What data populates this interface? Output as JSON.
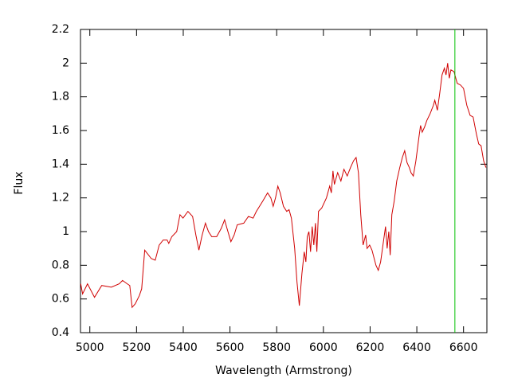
{
  "chart_data": {
    "type": "line",
    "xlabel": "Wavelength (Armstrong)",
    "ylabel": "Flux",
    "xlim": [
      4960,
      6700
    ],
    "ylim": [
      0.4,
      2.2
    ],
    "xticks": [
      5000,
      5200,
      5400,
      5600,
      5800,
      6000,
      6200,
      6400,
      6600
    ],
    "yticks": [
      0.4,
      0.6,
      0.8,
      1,
      1.2,
      1.4,
      1.6,
      1.8,
      2,
      2.2
    ],
    "grid": false,
    "vline": {
      "x": 6563,
      "color": "#00c000"
    },
    "x": [
      4961,
      4969,
      4990,
      5020,
      5051,
      5092,
      5126,
      5140,
      5160,
      5171,
      5181,
      5194,
      5212,
      5222,
      5235,
      5263,
      5280,
      5297,
      5314,
      5331,
      5338,
      5351,
      5372,
      5386,
      5399,
      5420,
      5440,
      5454,
      5467,
      5481,
      5495,
      5508,
      5522,
      5543,
      5563,
      5577,
      5587,
      5604,
      5618,
      5631,
      5659,
      5679,
      5699,
      5713,
      5740,
      5761,
      5775,
      5785,
      5795,
      5805,
      5815,
      5829,
      5843,
      5853,
      5863,
      5877,
      5887,
      5897,
      5908,
      5918,
      5925,
      5931,
      5938,
      5945,
      5952,
      5959,
      5966,
      5972,
      5979,
      5993,
      6013,
      6027,
      6034,
      6041,
      6047,
      6061,
      6075,
      6088,
      6102,
      6116,
      6129,
      6140,
      6150,
      6160,
      6170,
      6181,
      6187,
      6198,
      6208,
      6225,
      6235,
      6245,
      6256,
      6266,
      6273,
      6280,
      6286,
      6293,
      6303,
      6314,
      6327,
      6338,
      6348,
      6358,
      6368,
      6375,
      6385,
      6396,
      6409,
      6416,
      6423,
      6433,
      6443,
      6457,
      6471,
      6477,
      6488,
      6498,
      6508,
      6518,
      6525,
      6532,
      6539,
      6546,
      6559,
      6573,
      6587,
      6600,
      6614,
      6628,
      6641,
      6655,
      6665,
      6675,
      6686,
      6696
    ],
    "series": [
      {
        "name": "Flux",
        "color": "#d00000",
        "values": [
          0.69,
          0.63,
          0.69,
          0.61,
          0.68,
          0.67,
          0.69,
          0.71,
          0.69,
          0.68,
          0.55,
          0.57,
          0.62,
          0.66,
          0.89,
          0.84,
          0.83,
          0.92,
          0.95,
          0.95,
          0.93,
          0.97,
          1.0,
          1.1,
          1.08,
          1.12,
          1.09,
          0.98,
          0.89,
          0.98,
          1.05,
          1.0,
          0.97,
          0.97,
          1.02,
          1.07,
          1.02,
          0.94,
          0.98,
          1.04,
          1.05,
          1.09,
          1.08,
          1.12,
          1.18,
          1.23,
          1.2,
          1.15,
          1.2,
          1.27,
          1.23,
          1.15,
          1.12,
          1.13,
          1.08,
          0.9,
          0.7,
          0.56,
          0.75,
          0.88,
          0.82,
          0.97,
          1.0,
          0.88,
          1.03,
          0.92,
          1.05,
          0.88,
          1.12,
          1.14,
          1.2,
          1.27,
          1.23,
          1.36,
          1.28,
          1.35,
          1.3,
          1.37,
          1.33,
          1.38,
          1.42,
          1.44,
          1.35,
          1.1,
          0.92,
          0.98,
          0.9,
          0.92,
          0.89,
          0.8,
          0.77,
          0.82,
          0.93,
          1.03,
          0.9,
          1.0,
          0.86,
          1.1,
          1.18,
          1.3,
          1.38,
          1.44,
          1.48,
          1.41,
          1.38,
          1.35,
          1.33,
          1.42,
          1.56,
          1.63,
          1.59,
          1.62,
          1.66,
          1.7,
          1.75,
          1.78,
          1.72,
          1.82,
          1.93,
          1.97,
          1.93,
          2.0,
          1.91,
          1.96,
          1.95,
          1.88,
          1.87,
          1.85,
          1.75,
          1.69,
          1.68,
          1.58,
          1.52,
          1.51,
          1.42,
          1.38
        ]
      }
    ]
  }
}
